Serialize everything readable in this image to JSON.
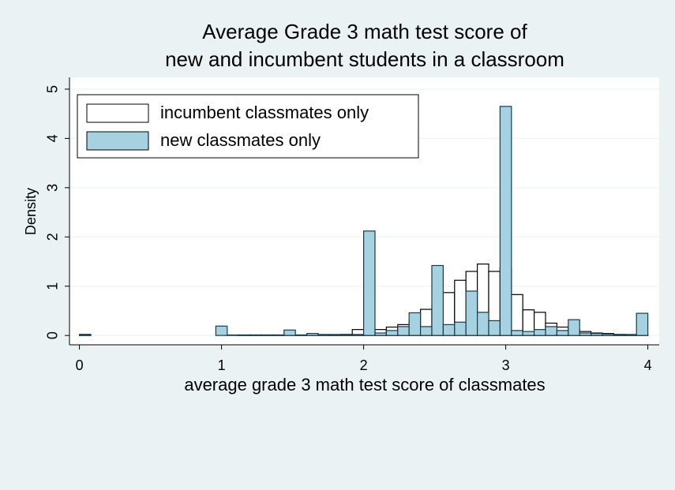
{
  "chart_data": {
    "type": "histogram",
    "title": [
      "Average Grade 3 math test score of",
      "new and incumbent students in a classroom"
    ],
    "xlabel": "average grade 3 math test score of classmates",
    "ylabel": "Density",
    "bins": [
      0,
      0.08,
      0.16,
      0.24,
      0.32,
      0.4,
      0.48,
      0.56,
      0.64,
      0.72,
      0.8,
      0.88,
      0.96,
      1.04,
      1.12,
      1.2,
      1.28,
      1.36,
      1.44,
      1.52,
      1.6,
      1.68,
      1.76,
      1.84,
      1.92,
      2.0,
      2.08,
      2.16,
      2.24,
      2.32,
      2.4,
      2.48,
      2.56,
      2.64,
      2.72,
      2.8,
      2.88,
      2.96,
      3.04,
      3.12,
      3.2,
      3.28,
      3.36,
      3.44,
      3.52,
      3.6,
      3.68,
      3.76,
      3.84,
      3.92,
      4.0
    ],
    "series": [
      {
        "name": "incumbent classmates only",
        "color": "#ffffff",
        "values": [
          0.02,
          0,
          0,
          0,
          0,
          0,
          0,
          0,
          0,
          0,
          0,
          0,
          0,
          0,
          0.01,
          0.01,
          0.01,
          0.01,
          0.01,
          0.01,
          0.01,
          0.01,
          0.01,
          0.02,
          0.12,
          0.05,
          0.12,
          0.17,
          0.22,
          0.3,
          0.53,
          0.6,
          0.87,
          1.12,
          1.3,
          1.45,
          1.3,
          1.38,
          0.83,
          0.52,
          0.47,
          0.25,
          0.17,
          0.12,
          0.08,
          0.05,
          0.04,
          0.02,
          0.01,
          0.02
        ]
      },
      {
        "name": "new classmates only",
        "color": "#a6d1e0",
        "values": [
          0.02,
          0,
          0,
          0,
          0,
          0,
          0,
          0,
          0,
          0,
          0,
          0,
          0.19,
          0.01,
          0.01,
          0.01,
          0.01,
          0.01,
          0.11,
          0.01,
          0.04,
          0.02,
          0.02,
          0.02,
          0.02,
          2.12,
          0.05,
          0.1,
          0.18,
          0.46,
          0.18,
          1.42,
          0.22,
          0.27,
          0.9,
          0.47,
          0.3,
          4.65,
          0.1,
          0.08,
          0.12,
          0.18,
          0.1,
          0.32,
          0.05,
          0.04,
          0.03,
          0.02,
          0.02,
          0.45
        ]
      }
    ],
    "xlim": [
      -0.07,
      4.08
    ],
    "xticks": [
      0,
      1,
      2,
      3,
      4
    ],
    "ylim": [
      -0.19,
      5.24
    ],
    "yticks": [
      0,
      1,
      2,
      3,
      4,
      5
    ],
    "grid": true,
    "legend": "upper left"
  }
}
